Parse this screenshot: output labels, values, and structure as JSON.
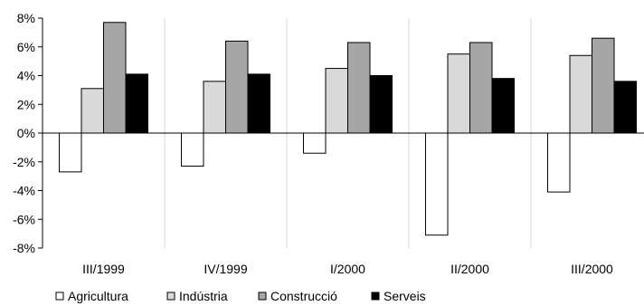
{
  "chart_data": {
    "type": "bar",
    "title": "",
    "xlabel": "",
    "ylabel": "",
    "categories": [
      "III/1999",
      "IV/1999",
      "I/2000",
      "II/2000",
      "III/2000"
    ],
    "series": [
      {
        "name": "Agricultura",
        "values": [
          -2.7,
          -2.3,
          -1.4,
          -7.1,
          -4.1
        ],
        "color": "#ffffff"
      },
      {
        "name": "Indústria",
        "values": [
          3.1,
          3.6,
          4.5,
          5.5,
          5.4
        ],
        "color": "#d9d9d9"
      },
      {
        "name": "Construcció",
        "values": [
          7.7,
          6.4,
          6.3,
          6.3,
          6.6
        ],
        "color": "#a6a6a6"
      },
      {
        "name": "Serveis",
        "values": [
          4.1,
          4.1,
          4.0,
          3.8,
          3.6
        ],
        "color": "#000000"
      }
    ],
    "ylim": [
      -8,
      8
    ],
    "yticks": [
      "8%",
      "6%",
      "4%",
      "2%",
      "0%",
      "-2%",
      "-4%",
      "-6%",
      "-8%"
    ],
    "grid": {
      "vertical": true,
      "horizontal": false
    },
    "legend": "bottom-left"
  }
}
